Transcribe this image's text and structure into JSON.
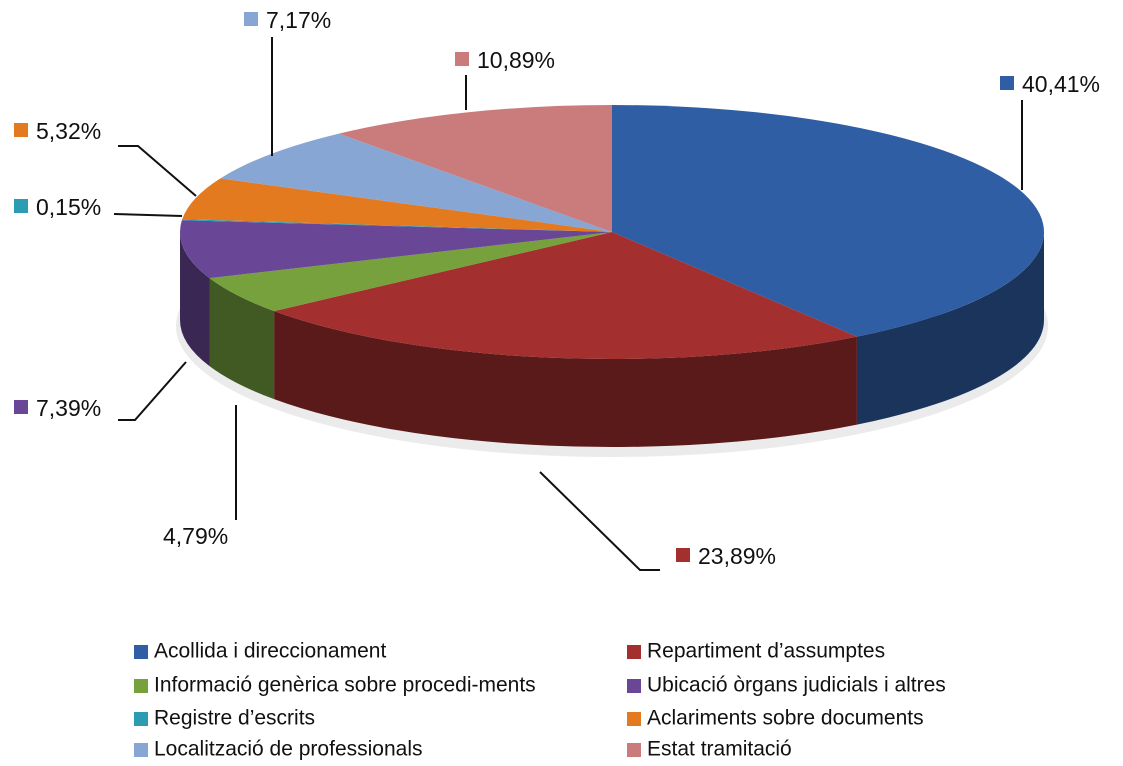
{
  "chart_data": {
    "type": "pie3d",
    "categories": [
      "Acollida i direccionament",
      "Repartiment d’assumptes",
      "Informació genèrica sobre procedi-ments",
      "Ubicació òrgans judicials i altres",
      "Registre d’escrits",
      "Aclariments sobre documents",
      "Localització de professionals",
      "Estat tramitació"
    ],
    "values": [
      40.41,
      23.89,
      4.79,
      7.39,
      0.15,
      5.32,
      7.17,
      10.89
    ],
    "value_labels": [
      "40,41%",
      "23,89%",
      "4,79%",
      "7,39%",
      "0,15%",
      "5,32%",
      "7,17%",
      "10,89%"
    ],
    "colors": [
      "#2f5ea5",
      "#a3302f",
      "#77a13d",
      "#6a4796",
      "#2c9cb3",
      "#e37a1f",
      "#88a6d3",
      "#c97c7b"
    ],
    "legend": "bottom"
  }
}
